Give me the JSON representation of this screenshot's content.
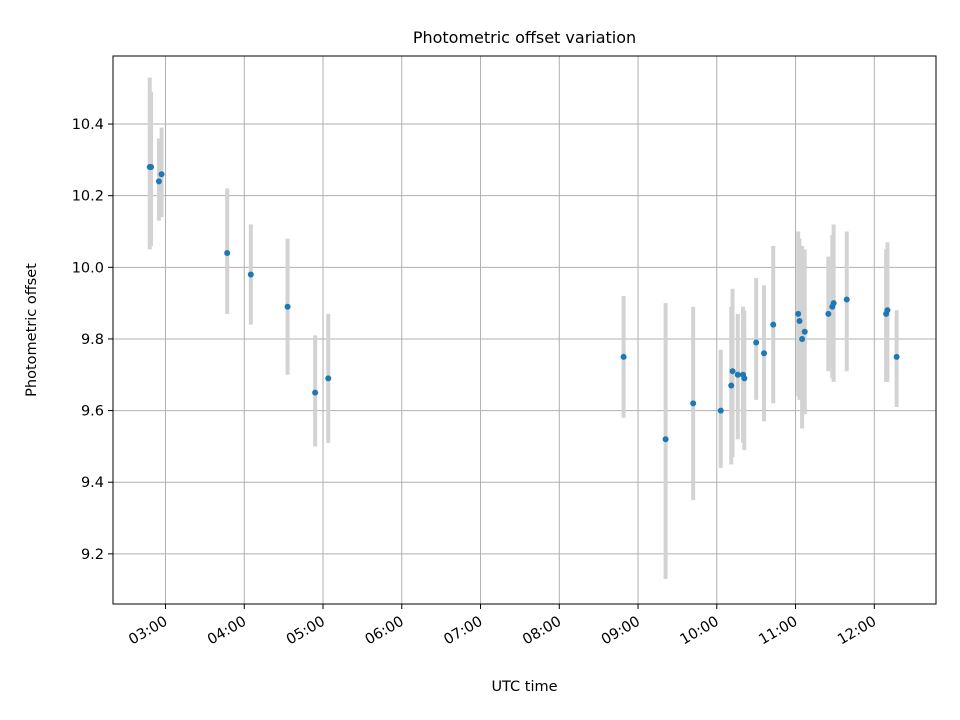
{
  "chart_data": {
    "type": "scatter",
    "title": "Photometric offset variation",
    "xlabel": "UTC time",
    "ylabel": "Photometric offset",
    "x_axis_kind": "time",
    "xlim": [
      "02:20",
      "12:47"
    ],
    "ylim": [
      9.06,
      10.59
    ],
    "x_ticks": [
      "03:00",
      "04:00",
      "05:00",
      "06:00",
      "07:00",
      "08:00",
      "09:00",
      "10:00",
      "11:00",
      "12:00"
    ],
    "y_ticks": [
      9.2,
      9.4,
      9.6,
      9.8,
      10.0,
      10.2,
      10.4
    ],
    "grid": true,
    "legend": "none",
    "errorbar_color": "#d3d3d3",
    "marker_color": "#1f77b4",
    "points": [
      {
        "time": "02:48",
        "offset": 10.28,
        "lower": 10.05,
        "upper": 10.53
      },
      {
        "time": "02:49",
        "offset": 10.28,
        "lower": 10.06,
        "upper": 10.49
      },
      {
        "time": "02:55",
        "offset": 10.24,
        "lower": 10.13,
        "upper": 10.36
      },
      {
        "time": "02:57",
        "offset": 10.26,
        "lower": 10.14,
        "upper": 10.39
      },
      {
        "time": "03:47",
        "offset": 10.04,
        "lower": 9.87,
        "upper": 10.22
      },
      {
        "time": "04:05",
        "offset": 9.98,
        "lower": 9.84,
        "upper": 10.12
      },
      {
        "time": "04:33",
        "offset": 9.89,
        "lower": 9.7,
        "upper": 10.08
      },
      {
        "time": "04:54",
        "offset": 9.65,
        "lower": 9.5,
        "upper": 9.81
      },
      {
        "time": "05:04",
        "offset": 9.69,
        "lower": 9.51,
        "upper": 9.87
      },
      {
        "time": "08:49",
        "offset": 9.75,
        "lower": 9.58,
        "upper": 9.92
      },
      {
        "time": "09:21",
        "offset": 9.52,
        "lower": 9.13,
        "upper": 9.9
      },
      {
        "time": "09:42",
        "offset": 9.62,
        "lower": 9.35,
        "upper": 9.89
      },
      {
        "time": "10:03",
        "offset": 9.6,
        "lower": 9.44,
        "upper": 9.77
      },
      {
        "time": "10:11",
        "offset": 9.67,
        "lower": 9.45,
        "upper": 9.89
      },
      {
        "time": "10:12",
        "offset": 9.71,
        "lower": 9.47,
        "upper": 9.94
      },
      {
        "time": "10:16",
        "offset": 9.7,
        "lower": 9.52,
        "upper": 9.87
      },
      {
        "time": "10:20",
        "offset": 9.7,
        "lower": 9.51,
        "upper": 9.89
      },
      {
        "time": "10:21",
        "offset": 9.69,
        "lower": 9.49,
        "upper": 9.88
      },
      {
        "time": "10:30",
        "offset": 9.79,
        "lower": 9.63,
        "upper": 9.97
      },
      {
        "time": "10:36",
        "offset": 9.76,
        "lower": 9.57,
        "upper": 9.95
      },
      {
        "time": "10:43",
        "offset": 9.84,
        "lower": 9.62,
        "upper": 10.06
      },
      {
        "time": "11:02",
        "offset": 9.87,
        "lower": 9.64,
        "upper": 10.1
      },
      {
        "time": "11:03",
        "offset": 9.85,
        "lower": 9.63,
        "upper": 10.08
      },
      {
        "time": "11:05",
        "offset": 9.8,
        "lower": 9.55,
        "upper": 10.06
      },
      {
        "time": "11:07",
        "offset": 9.82,
        "lower": 9.59,
        "upper": 10.05
      },
      {
        "time": "11:25",
        "offset": 9.87,
        "lower": 9.71,
        "upper": 10.03
      },
      {
        "time": "11:28",
        "offset": 9.89,
        "lower": 9.69,
        "upper": 10.09
      },
      {
        "time": "11:29",
        "offset": 9.9,
        "lower": 9.68,
        "upper": 10.12
      },
      {
        "time": "11:39",
        "offset": 9.91,
        "lower": 9.71,
        "upper": 10.1
      },
      {
        "time": "12:09",
        "offset": 9.87,
        "lower": 9.68,
        "upper": 10.05
      },
      {
        "time": "12:10",
        "offset": 9.88,
        "lower": 9.68,
        "upper": 10.07
      },
      {
        "time": "12:17",
        "offset": 9.75,
        "lower": 9.61,
        "upper": 9.88
      }
    ]
  }
}
